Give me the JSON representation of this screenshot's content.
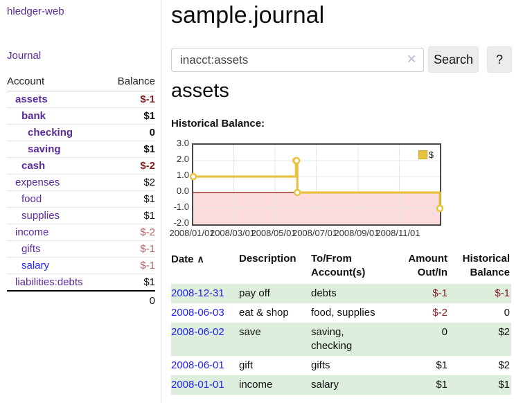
{
  "app": {
    "brand": "hledger-web",
    "nav_journal": "Journal"
  },
  "sidebar": {
    "header": {
      "account": "Account",
      "balance": "Balance"
    },
    "accounts": [
      {
        "name": "assets",
        "balance": "$-1",
        "indent": 1,
        "bold": true,
        "balance_class": "bal-neg-strong",
        "link_blue": false
      },
      {
        "name": "bank",
        "balance": "$1",
        "indent": 2,
        "bold": true,
        "balance_class": "bal-pos b",
        "link_blue": false
      },
      {
        "name": "checking",
        "balance": "0",
        "indent": 3,
        "bold": true,
        "balance_class": "bal-pos b",
        "link_blue": false
      },
      {
        "name": "saving",
        "balance": "$1",
        "indent": 3,
        "bold": true,
        "balance_class": "bal-pos b",
        "link_blue": false
      },
      {
        "name": "cash",
        "balance": "$-2",
        "indent": 2,
        "bold": true,
        "balance_class": "bal-neg-strong",
        "link_blue": false
      },
      {
        "name": "expenses",
        "balance": "$2",
        "indent": 1,
        "bold": false,
        "balance_class": "bal-pos",
        "link_blue": false
      },
      {
        "name": "food",
        "balance": "$1",
        "indent": 2,
        "bold": false,
        "balance_class": "bal-pos",
        "link_blue": false
      },
      {
        "name": "supplies",
        "balance": "$1",
        "indent": 2,
        "bold": false,
        "balance_class": "bal-pos",
        "link_blue": false
      },
      {
        "name": "income",
        "balance": "$-2",
        "indent": 1,
        "bold": false,
        "balance_class": "bal-neg-muted",
        "link_blue": false
      },
      {
        "name": "gifts",
        "balance": "$-1",
        "indent": 2,
        "bold": false,
        "balance_class": "bal-neg-muted",
        "link_blue": false
      },
      {
        "name": "salary",
        "balance": "$-1",
        "indent": 2,
        "bold": false,
        "balance_class": "bal-neg-muted",
        "link_blue": true
      },
      {
        "name": "liabilities:debts",
        "balance": "$1",
        "indent": 1,
        "bold": false,
        "balance_class": "bal-pos",
        "link_blue": false
      }
    ],
    "total": "0"
  },
  "main": {
    "title": "sample.journal",
    "search": {
      "value": "inacct:assets",
      "clear_label": "✕",
      "button_label": "Search",
      "help_label": "?"
    },
    "account_heading": "assets",
    "chart_label": "Historical Balance:"
  },
  "chart_data": {
    "type": "line",
    "title": "Historical Balance:",
    "steps": true,
    "series": [
      {
        "name": "$",
        "color": "#e9c340",
        "points": [
          [
            "2008/01/01",
            1
          ],
          [
            "2008/06/01",
            2
          ],
          [
            "2008/06/02",
            2
          ],
          [
            "2008/06/03",
            0
          ],
          [
            "2008/12/31",
            -1
          ]
        ]
      }
    ],
    "xrange": [
      "2008/01/01",
      "2008/12/31"
    ],
    "xticks": [
      "2008/01/01",
      "2008/03/01",
      "2008/05/01",
      "2008/07/01",
      "2008/09/01",
      "2008/11/01"
    ],
    "yticks": [
      3.0,
      2.0,
      1.0,
      0.0,
      -1.0,
      -2.0
    ],
    "ylim": [
      -2,
      3
    ],
    "grid": true,
    "grid_color": "#e6e6e6",
    "negative_region_color": "#fbdbdb",
    "zero_line_color": "#8f1010",
    "legend": {
      "position": "top-right",
      "label": "$",
      "swatch_color": "#e9c340"
    }
  },
  "register": {
    "headers": {
      "date": "Date",
      "description": "Description",
      "accounts": "To/From Account(s)",
      "amount": "Amount Out/In",
      "balance": "Historical Balance"
    },
    "sort_icon": "∧",
    "rows": [
      {
        "date": "2008-12-31",
        "description": "pay off",
        "accounts": "debts",
        "amount": "$-1",
        "amount_neg": true,
        "balance": "$-1",
        "balance_neg": true
      },
      {
        "date": "2008-06-03",
        "description": "eat & shop",
        "accounts": "food, supplies",
        "amount": "$-2",
        "amount_neg": true,
        "balance": "0",
        "balance_neg": false
      },
      {
        "date": "2008-06-02",
        "description": "save",
        "accounts": "saving, checking",
        "amount": "0",
        "amount_neg": false,
        "balance": "$2",
        "balance_neg": false
      },
      {
        "date": "2008-06-01",
        "description": "gift",
        "accounts": "gifts",
        "amount": "$1",
        "amount_neg": false,
        "balance": "$2",
        "balance_neg": false
      },
      {
        "date": "2008-01-01",
        "description": "income",
        "accounts": "salary",
        "amount": "$1",
        "amount_neg": false,
        "balance": "$1",
        "balance_neg": false
      }
    ]
  }
}
